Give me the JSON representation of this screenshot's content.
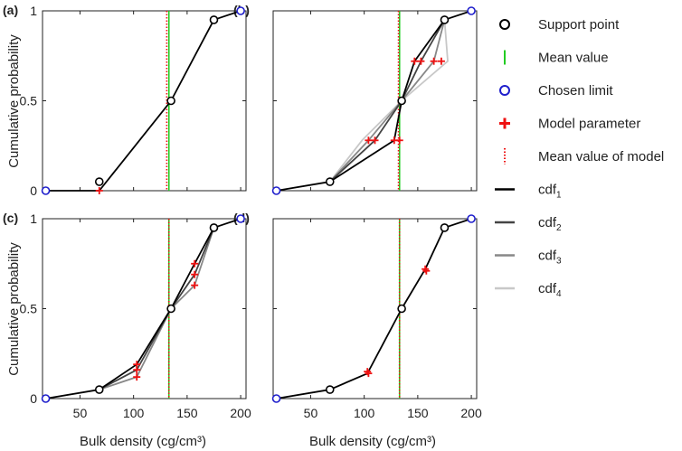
{
  "figure": {
    "y_label": "Cumulative probability",
    "x_label": "Bulk density (cg/cm³)",
    "x_ticks": [
      50,
      100,
      150,
      200
    ],
    "x_tick_labels": [
      "50",
      "100",
      "150",
      "200"
    ],
    "y_ticks": [
      0,
      0.5,
      1
    ],
    "y_tick_labels": [
      "0",
      "0.5",
      "1"
    ],
    "x_range": [
      15,
      205
    ],
    "y_range": [
      0,
      1
    ]
  },
  "colors": {
    "support": "#000000",
    "mean": "#22cc22",
    "chosen": "#1f1fcc",
    "model": "#ee1111",
    "cdf1": "#000000",
    "cdf2": "#444444",
    "cdf3": "#888888",
    "cdf4": "#c8c8c8"
  },
  "legend": {
    "items": [
      {
        "key": "support",
        "label": "Support point",
        "icon": "circle-marker-icon"
      },
      {
        "key": "mean",
        "label": "Mean value",
        "icon": "green-line-icon"
      },
      {
        "key": "chosen",
        "label": "Chosen limit",
        "icon": "blue-circle-marker-icon"
      },
      {
        "key": "model",
        "label": "Model parameter",
        "icon": "red-plus-marker-icon"
      },
      {
        "key": "model_mean",
        "label": "Mean value of model",
        "icon": "red-dotted-line-icon"
      },
      {
        "key": "cdf1",
        "label": "cdf",
        "sub": "1",
        "icon": "line-icon"
      },
      {
        "key": "cdf2",
        "label": "cdf",
        "sub": "2",
        "icon": "line-icon"
      },
      {
        "key": "cdf3",
        "label": "cdf",
        "sub": "3",
        "icon": "line-icon"
      },
      {
        "key": "cdf4",
        "label": "cdf",
        "sub": "4",
        "icon": "line-icon"
      }
    ]
  },
  "chart_data": [
    {
      "panel": "(a)",
      "type": "line",
      "support_points": [
        [
          68,
          0.05
        ],
        [
          135,
          0.5
        ],
        [
          175,
          0.95
        ]
      ],
      "chosen_limits": [
        [
          18,
          0
        ],
        [
          200,
          1
        ]
      ],
      "mean_value": 133,
      "model_mean": 131,
      "cdfs": [
        {
          "name": "cdf1",
          "points": [
            [
              18,
              0
            ],
            [
              68,
              0
            ],
            [
              135,
              0.5
            ],
            [
              175,
              0.95
            ],
            [
              200,
              1
            ]
          ]
        }
      ],
      "model_params": [
        [
          68,
          0
        ],
        [
          200,
          1
        ]
      ]
    },
    {
      "panel": "(b)",
      "type": "line",
      "support_points": [
        [
          68,
          0.05
        ],
        [
          135,
          0.5
        ],
        [
          175,
          0.95
        ]
      ],
      "chosen_limits": [
        [
          18,
          0
        ],
        [
          200,
          1
        ]
      ],
      "mean_value": 133,
      "model_mean": 132,
      "cdfs": [
        {
          "name": "cdf1",
          "points": [
            [
              18,
              0
            ],
            [
              68,
              0.05
            ],
            [
              128,
              0.28
            ],
            [
              135,
              0.5
            ],
            [
              147,
              0.72
            ],
            [
              175,
              0.95
            ],
            [
              200,
              1
            ]
          ]
        },
        {
          "name": "cdf2",
          "points": [
            [
              68,
              0.05
            ],
            [
              110,
              0.28
            ],
            [
              135,
              0.5
            ],
            [
              153,
              0.72
            ],
            [
              175,
              0.95
            ]
          ]
        },
        {
          "name": "cdf3",
          "points": [
            [
              68,
              0.05
            ],
            [
              104,
              0.28
            ],
            [
              135,
              0.5
            ],
            [
              165,
              0.72
            ],
            [
              175,
              0.95
            ]
          ]
        },
        {
          "name": "cdf4",
          "points": [
            [
              68,
              0.05
            ],
            [
              98,
              0.28
            ],
            [
              135,
              0.5
            ],
            [
              178,
              0.72
            ],
            [
              175,
              0.95
            ]
          ]
        }
      ],
      "model_params": [
        [
          104,
          0.28
        ],
        [
          110,
          0.28
        ],
        [
          128,
          0.28
        ],
        [
          133,
          0.28
        ],
        [
          147,
          0.72
        ],
        [
          153,
          0.72
        ],
        [
          165,
          0.72
        ],
        [
          172,
          0.72
        ]
      ]
    },
    {
      "panel": "(c)",
      "type": "line",
      "support_points": [
        [
          68,
          0.05
        ],
        [
          135,
          0.5
        ],
        [
          175,
          0.95
        ]
      ],
      "chosen_limits": [
        [
          18,
          0
        ],
        [
          200,
          1
        ]
      ],
      "mean_value": 133,
      "model_mean": 133,
      "cdfs": [
        {
          "name": "cdf1",
          "points": [
            [
              18,
              0
            ],
            [
              68,
              0.05
            ],
            [
              103,
              0.19
            ],
            [
              135,
              0.5
            ],
            [
              157,
              0.75
            ],
            [
              175,
              0.95
            ],
            [
              200,
              1
            ]
          ]
        },
        {
          "name": "cdf2",
          "points": [
            [
              68,
              0.05
            ],
            [
              103,
              0.16
            ],
            [
              135,
              0.5
            ],
            [
              157,
              0.69
            ],
            [
              175,
              0.95
            ]
          ]
        },
        {
          "name": "cdf3",
          "points": [
            [
              68,
              0.05
            ],
            [
              103,
              0.12
            ],
            [
              135,
              0.5
            ],
            [
              157,
              0.63
            ],
            [
              175,
              0.95
            ]
          ]
        }
      ],
      "model_params": [
        [
          103,
          0.19
        ],
        [
          103,
          0.16
        ],
        [
          103,
          0.12
        ],
        [
          157,
          0.75
        ],
        [
          157,
          0.69
        ],
        [
          157,
          0.63
        ]
      ]
    },
    {
      "panel": "(d)",
      "type": "line",
      "support_points": [
        [
          68,
          0.05
        ],
        [
          135,
          0.5
        ],
        [
          175,
          0.95
        ]
      ],
      "chosen_limits": [
        [
          18,
          0
        ],
        [
          200,
          1
        ]
      ],
      "mean_value": 133,
      "model_mean": 133,
      "cdfs": [
        {
          "name": "cdf1",
          "points": [
            [
              18,
              0
            ],
            [
              68,
              0.05
            ],
            [
              103,
              0.14
            ],
            [
              135,
              0.5
            ],
            [
              157,
              0.72
            ],
            [
              175,
              0.95
            ],
            [
              200,
              1
            ]
          ]
        }
      ],
      "model_params": [
        [
          103,
          0.15
        ],
        [
          104,
          0.14
        ],
        [
          157,
          0.72
        ],
        [
          158,
          0.71
        ]
      ]
    }
  ]
}
